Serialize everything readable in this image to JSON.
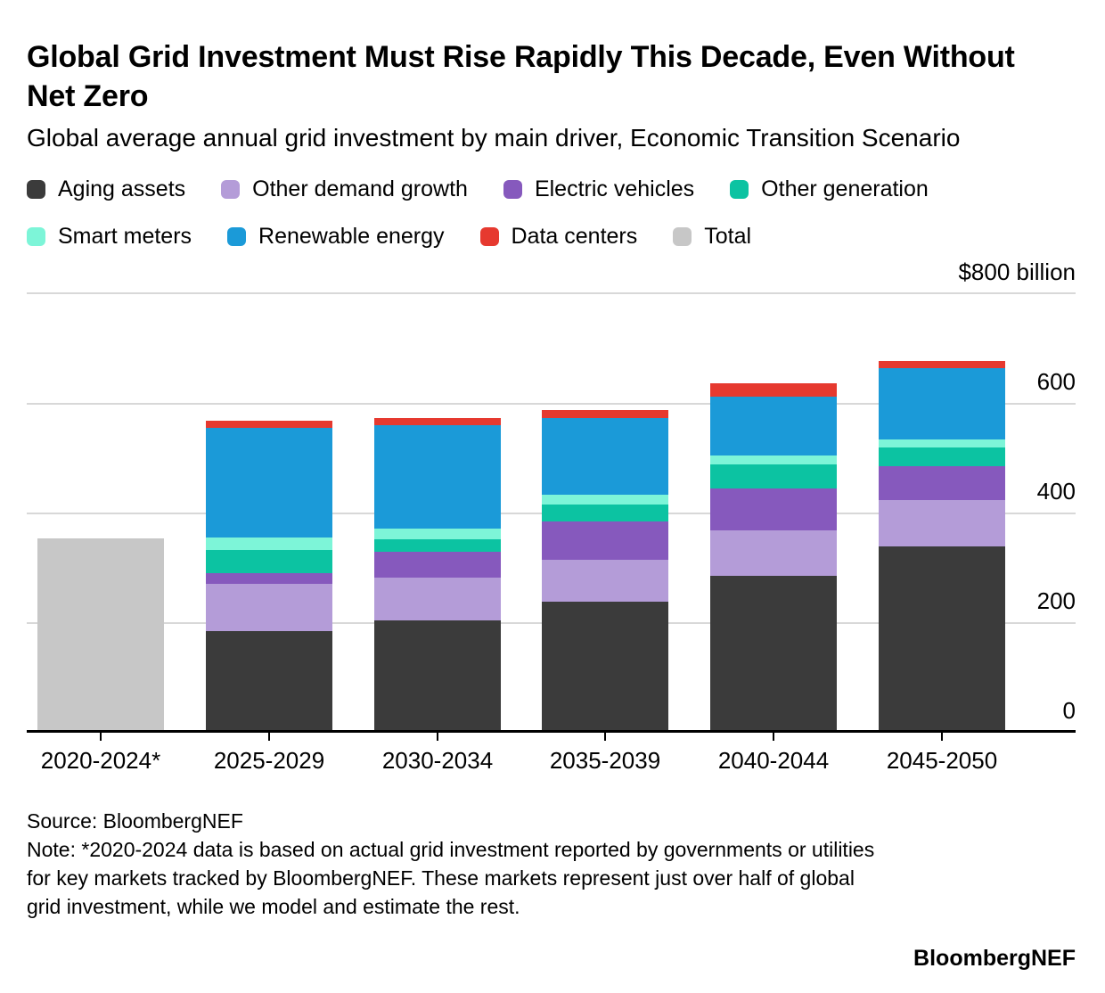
{
  "header": {
    "title": "Global Grid Investment Must Rise Rapidly This Decade, Even Without Net Zero",
    "subtitle": "Global average annual grid investment by main driver, Economic Transition Scenario"
  },
  "chart_data": {
    "type": "bar",
    "stacked": true,
    "title": "Global Grid Investment Must Rise Rapidly This Decade, Even Without Net Zero",
    "subtitle": "Global average annual grid investment by main driver, Economic Transition Scenario",
    "unit_label": "$800 billion",
    "categories": [
      "2020-2024*",
      "2025-2029",
      "2030-2034",
      "2035-2039",
      "2040-2044",
      "2045-2050"
    ],
    "series": [
      {
        "name": "Aging assets",
        "color": "#3b3b3b",
        "values": [
          0,
          180,
          200,
          235,
          282,
          335
        ]
      },
      {
        "name": "Other demand growth",
        "color": "#b49cd8",
        "values": [
          0,
          86,
          78,
          75,
          82,
          85
        ]
      },
      {
        "name": "Electric vehicles",
        "color": "#8659bd",
        "values": [
          0,
          20,
          47,
          70,
          76,
          61
        ]
      },
      {
        "name": "Other generation",
        "color": "#0cc3a2",
        "values": [
          0,
          43,
          23,
          31,
          45,
          34
        ]
      },
      {
        "name": "Smart meters",
        "color": "#7df5d8",
        "values": [
          0,
          22,
          20,
          18,
          16,
          14
        ]
      },
      {
        "name": "Renewable energy",
        "color": "#1b9ad8",
        "values": [
          0,
          200,
          188,
          139,
          107,
          131
        ]
      },
      {
        "name": "Data centers",
        "color": "#e6392f",
        "values": [
          0,
          12,
          12,
          16,
          24,
          13
        ]
      },
      {
        "name": "Total",
        "color": "#c7c7c7",
        "values": [
          350,
          0,
          0,
          0,
          0,
          0
        ]
      }
    ],
    "ylim": [
      0,
      800
    ],
    "ytick_labels": [
      600,
      400,
      200,
      0
    ],
    "gridline_values": [
      800,
      600,
      400,
      200
    ],
    "grid": true,
    "legend_position": "top",
    "axis_color": "#000000",
    "gridline_color": "#d8d8d8"
  },
  "footer": {
    "source": "Source: BloombergNEF",
    "note": "Note: *2020-2024 data is based on actual grid investment reported by governments or utilities for key markets tracked by BloombergNEF. These markets represent just over half of global grid investment, while we model and estimate the rest.",
    "brand": "BloombergNEF"
  }
}
